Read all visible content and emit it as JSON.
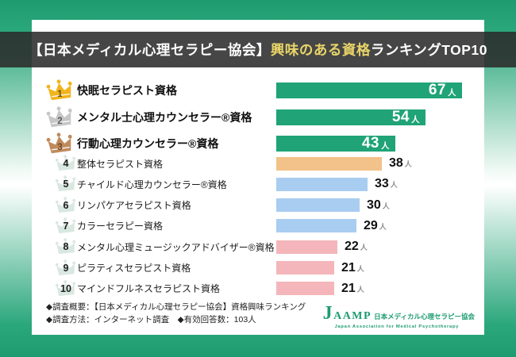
{
  "header": {
    "title_prefix": "【日本メディカル心理セラピー協会】",
    "title_highlight": "興味のある資格",
    "title_suffix": "ランキングTOP10"
  },
  "chart_data": {
    "type": "bar",
    "orientation": "horizontal",
    "title": "【日本メディカル心理セラピー協会】興味のある資格ランキングTOP10",
    "unit": "人",
    "xlim": [
      0,
      70
    ],
    "ranks": [
      1,
      2,
      3,
      4,
      5,
      6,
      7,
      8,
      9,
      10
    ],
    "categories": [
      "快眠セラピスト資格",
      "メンタル士心理カウンセラー®資格",
      "行動心理カウンセラー®資格",
      "整体セラピスト資格",
      "チャイルド心理カウンセラー®資格",
      "リンパケアセラピスト資格",
      "カラーセラピー資格",
      "メンタル心理ミュージックアドバイザー®資格",
      "ピラティスセラピスト資格",
      "マインドフルネスセラピスト資格"
    ],
    "values": [
      67,
      54,
      43,
      38,
      33,
      30,
      29,
      22,
      21,
      21
    ],
    "bar_colors": [
      "green",
      "green",
      "green",
      "orange",
      "blue",
      "blue",
      "blue",
      "pink",
      "pink",
      "pink"
    ],
    "crown_tiers": [
      "gold",
      "silver",
      "bronze",
      "faint",
      "faint",
      "faint",
      "faint",
      "faint",
      "faint",
      "faint"
    ],
    "value_label_position": [
      "inside",
      "inside",
      "inside",
      "outside",
      "outside",
      "outside",
      "outside",
      "outside",
      "outside",
      "outside"
    ]
  },
  "colors": {
    "green": "#1fa377",
    "orange": "#f2c28a",
    "blue": "#a9cdf1",
    "pink": "#f4b6ba",
    "gold": "#f2b41c",
    "silver": "#c6c6c6",
    "bronze": "#bf8a5c",
    "faint": "#d9e8e1",
    "highlight": "#e8d468"
  },
  "footer": {
    "line1": "◆調査概要：【日本メディカル心理セラピー協会】資格興味ランキング",
    "line2": "◆調査方法：インターネット調査　◆有効回答数：103人"
  },
  "logo": {
    "name": "JAAMP",
    "jp_name": "日本メディカル心理セラピー協会",
    "en_name": "Japan Association for Medical Psychotherapy"
  }
}
